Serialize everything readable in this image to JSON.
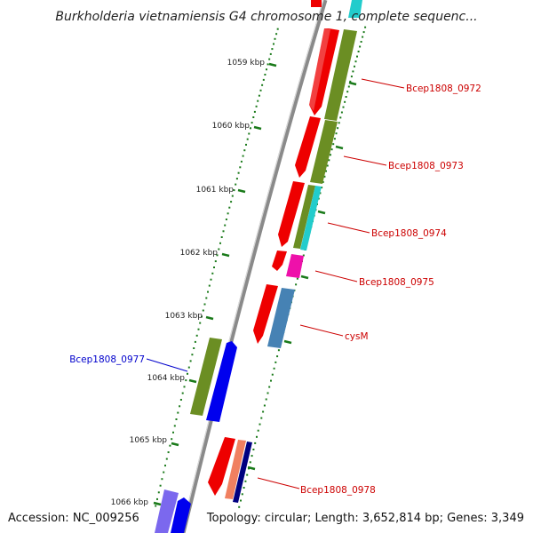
{
  "title": "Burkholderia vietnamiensis G4 chromosome 1, complete sequenc...",
  "footer": {
    "accession": "Accession: NC_009256",
    "summary": "Topology: circular; Length: 3,652,814 bp; Genes: 3,349"
  },
  "tick_labels": [
    "1059 kbp",
    "1060 kbp",
    "1061 kbp",
    "1062 kbp",
    "1063 kbp",
    "1064 kbp",
    "1065 kbp",
    "1066 kbp"
  ],
  "gene_labels": [
    {
      "text": "Bcep1808_0972",
      "color": "#cc0000"
    },
    {
      "text": "Bcep1808_0973",
      "color": "#cc0000"
    },
    {
      "text": "Bcep1808_0974",
      "color": "#cc0000"
    },
    {
      "text": "Bcep1808_0975",
      "color": "#cc0000"
    },
    {
      "text": "cysM",
      "color": "#cc0000"
    },
    {
      "text": "Bcep1808_0977",
      "color": "#0000cc"
    },
    {
      "text": "Bcep1808_0978",
      "color": "#cc0000"
    }
  ],
  "colors": {
    "backbone": "#8a8a8a",
    "tick": "#1a7a1a",
    "cds": "#ee0000",
    "olive": "#6b8e23",
    "cyan": "#22cccc",
    "magenta": "#ee11aa",
    "steelblue": "#4682b4",
    "blue": "#0000ee",
    "salmon": "#f08060",
    "navy": "#000080",
    "slate": "#7b68ee"
  }
}
